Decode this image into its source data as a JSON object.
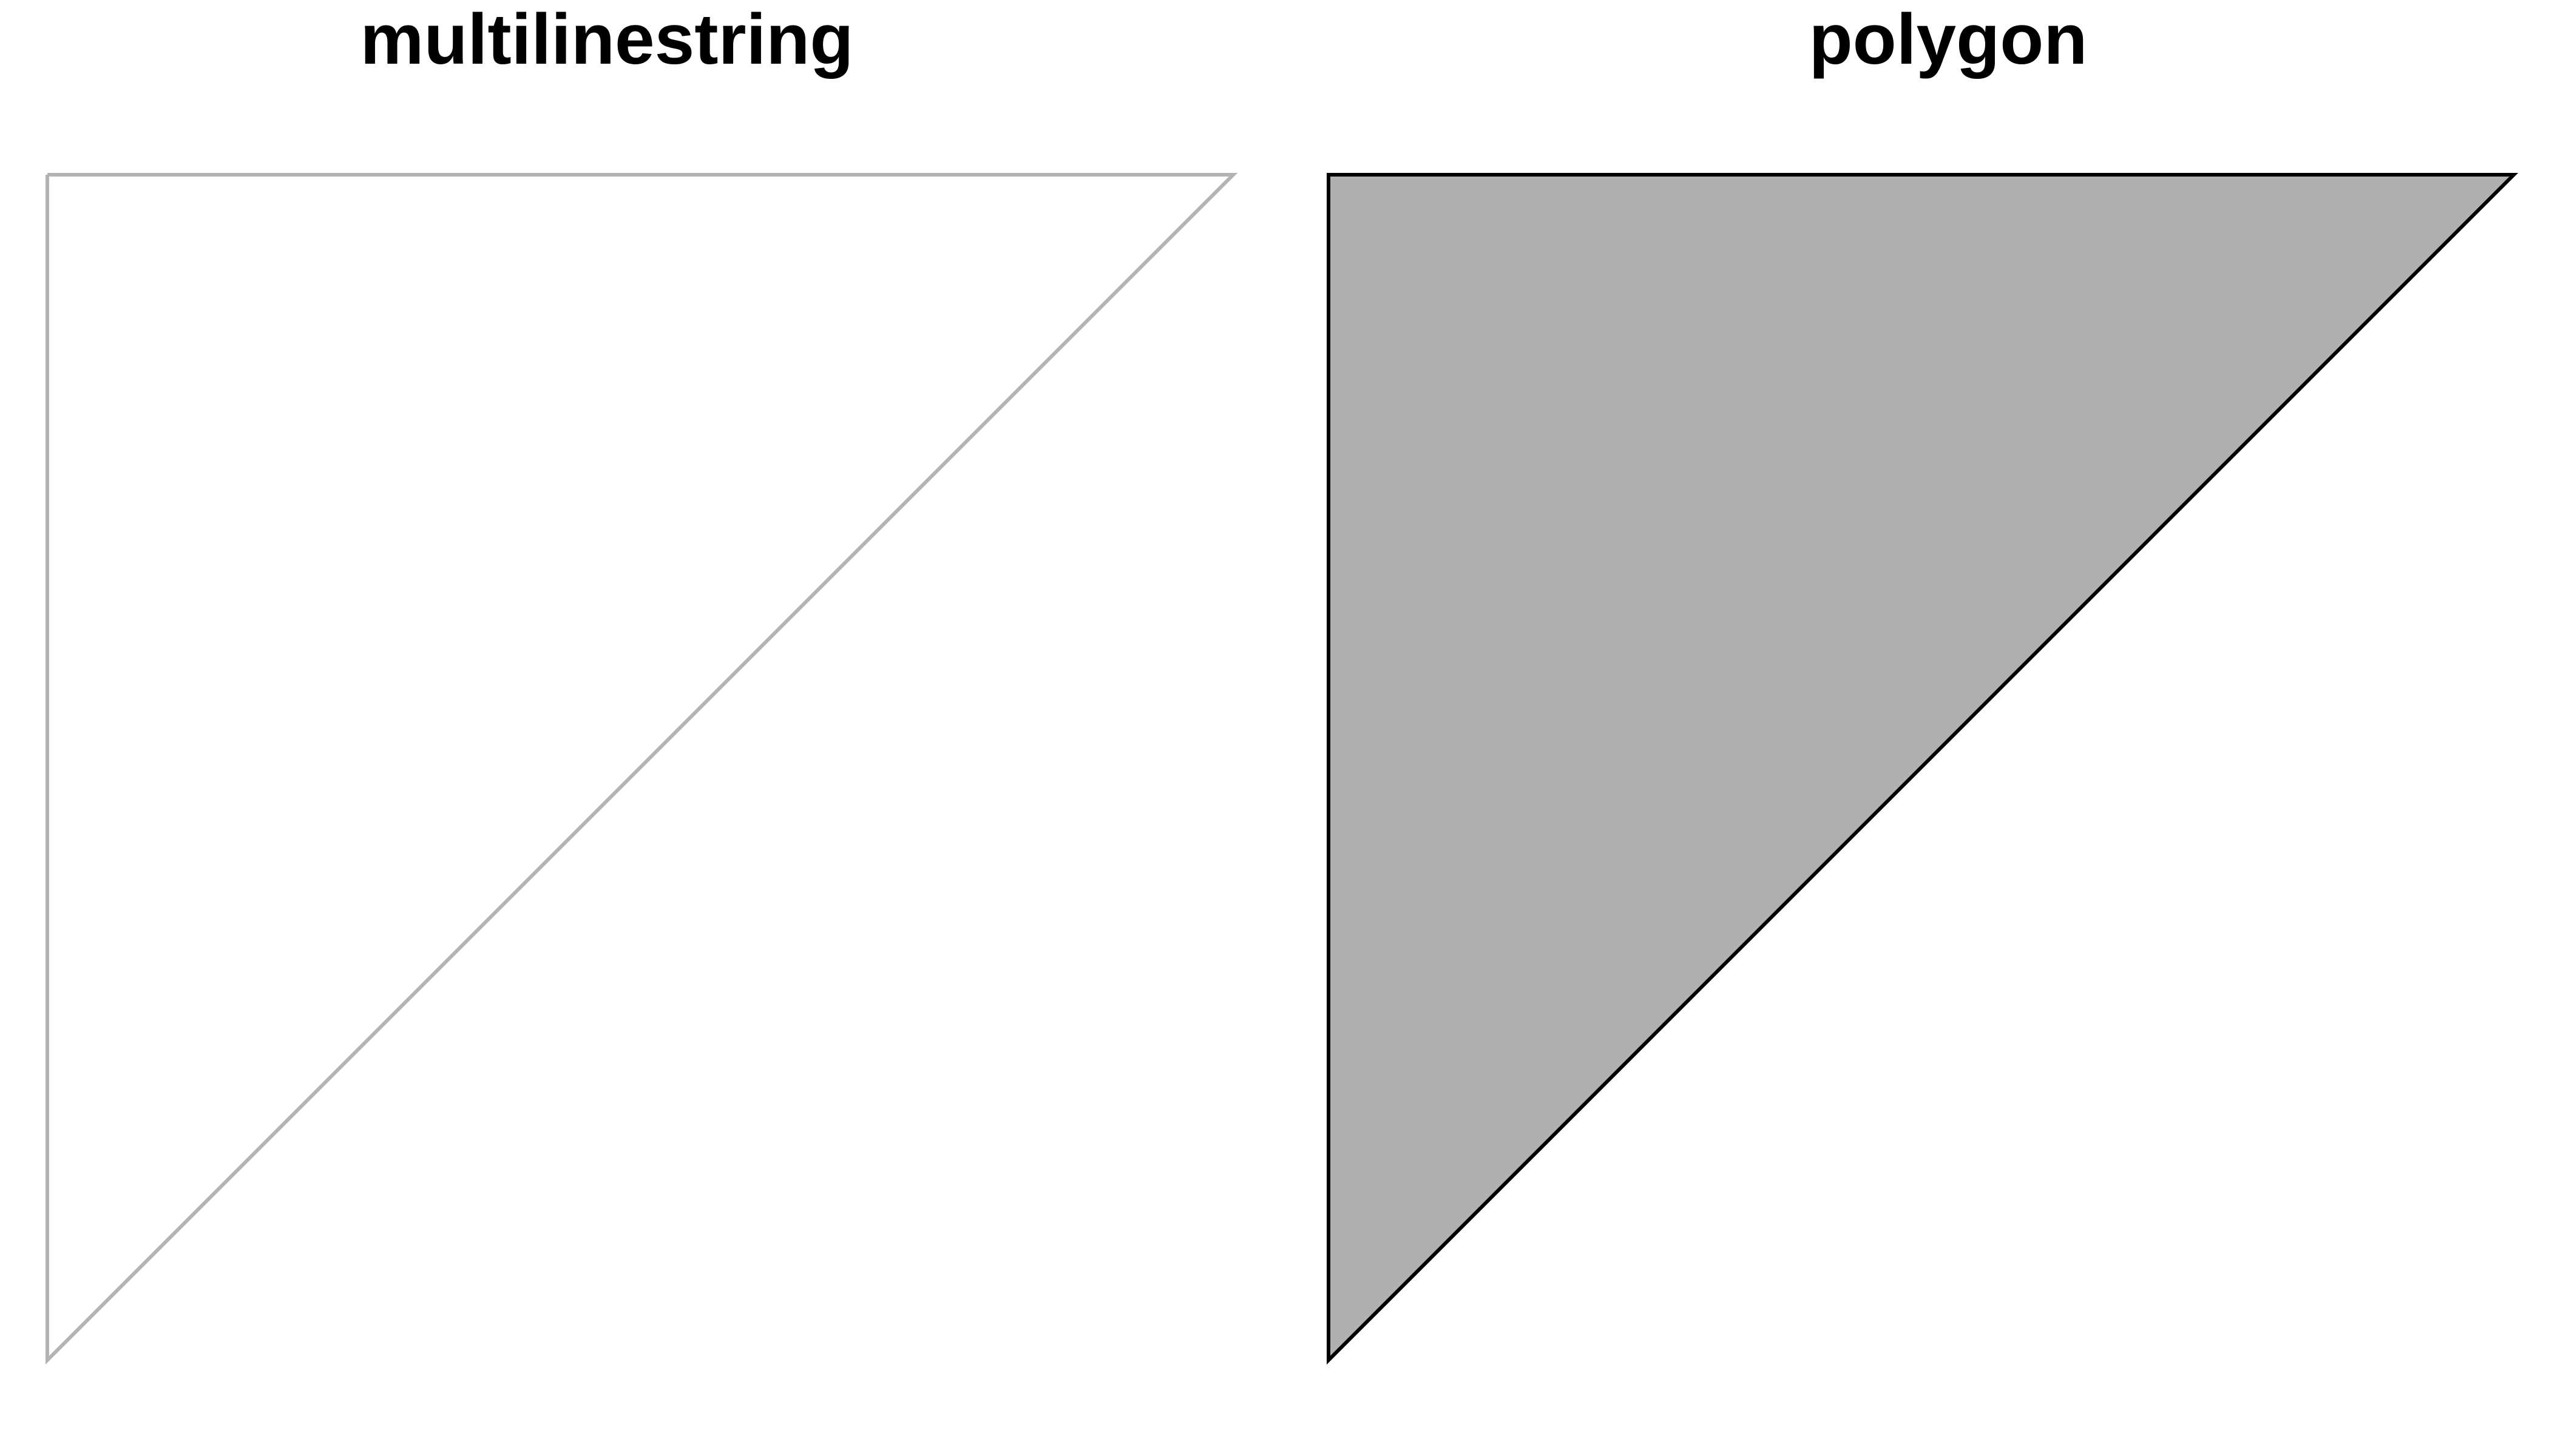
{
  "panels": [
    {
      "title": "multilinestring",
      "stroke_color": "#B3B3B3",
      "fill_color": "none"
    },
    {
      "title": "polygon",
      "stroke_color": "#000000",
      "fill_color": "#B0B0B0"
    }
  ]
}
